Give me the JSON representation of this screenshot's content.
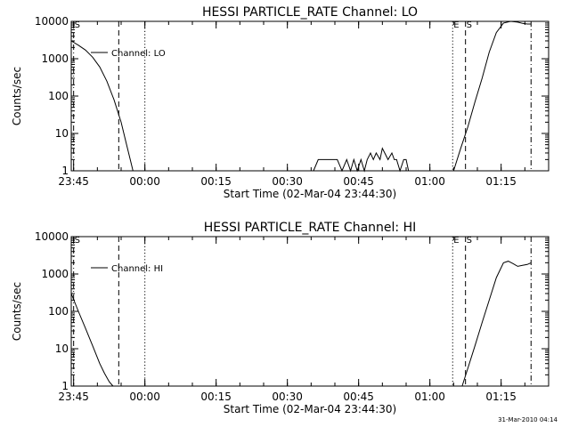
{
  "footer": {
    "timestamp": "31-Mar-2010 04:14"
  },
  "chart_data": [
    {
      "type": "line",
      "title": "HESSI PARTICLE_RATE Channel: LO",
      "xlabel": "Start Time (02-Mar-04 23:44:30)",
      "ylabel": "Counts/sec",
      "yscale": "log",
      "ylim": [
        1,
        10000
      ],
      "xlim_minutes": [
        0,
        100.5
      ],
      "xtick_values": [
        0.5,
        15.5,
        30.5,
        45.5,
        60.5,
        75.5,
        90.5
      ],
      "xtick_labels": [
        "23:45",
        "00:00",
        "00:15",
        "00:30",
        "00:45",
        "01:00",
        "01:15"
      ],
      "ytick_values": [
        1,
        10,
        100,
        1000,
        10000
      ],
      "ytick_labels": [
        "1",
        "10",
        "100",
        "1000",
        "10000"
      ],
      "grid": false,
      "legend": {
        "position": "top-left",
        "entries": [
          "Channel: LO"
        ]
      },
      "markers": [
        {
          "x": 0.5,
          "style": "dash-dot",
          "label": "S"
        },
        {
          "x": 10.0,
          "style": "dashed",
          "label": ""
        },
        {
          "x": 15.5,
          "style": "dotted",
          "label": ""
        },
        {
          "x": 80.3,
          "style": "dotted",
          "label": "E"
        },
        {
          "x": 83.0,
          "style": "dashed",
          "label": "S"
        },
        {
          "x": 96.8,
          "style": "dash-dot",
          "label": ""
        }
      ],
      "series": [
        {
          "name": "Channel: LO",
          "segments": [
            {
              "x": [
                0.0,
                1.5,
                3.0,
                4.5,
                6.0,
                7.5,
                9.0,
                10.5,
                11.5,
                12.5,
                13.0
              ],
              "y": [
                3000,
                2300,
                1700,
                1100,
                600,
                250,
                80,
                20,
                6,
                1.8,
                1
              ]
            },
            {
              "x": [
                51,
                52,
                53,
                54,
                55,
                56,
                57,
                58,
                58.8,
                59.5,
                60.2,
                61,
                61.7,
                62.3,
                63,
                63.6,
                64.2,
                65,
                65.5,
                66,
                66.7,
                67.5,
                68,
                68.5,
                69.2,
                70,
                70.5,
                71
              ],
              "y": [
                1,
                2,
                2,
                2,
                2,
                2,
                1,
                2,
                1,
                2,
                1,
                2,
                1,
                2,
                3,
                2,
                3,
                2,
                4,
                3,
                2,
                3,
                2,
                2,
                1,
                2,
                2,
                1
              ]
            },
            {
              "x": [
                80.5,
                82,
                83.5,
                85,
                86.5,
                88,
                89.5,
                91,
                92.5,
                94,
                95,
                96,
                96.8
              ],
              "y": [
                1,
                4,
                15,
                70,
                300,
                1500,
                5000,
                9000,
                10000,
                9500,
                8800,
                8500,
                8500
              ]
            }
          ]
        }
      ]
    },
    {
      "type": "line",
      "title": "HESSI PARTICLE_RATE Channel: HI",
      "xlabel": "Start Time (02-Mar-04 23:44:30)",
      "ylabel": "Counts/sec",
      "yscale": "log",
      "ylim": [
        1,
        10000
      ],
      "xlim_minutes": [
        0,
        100.5
      ],
      "xtick_values": [
        0.5,
        15.5,
        30.5,
        45.5,
        60.5,
        75.5,
        90.5
      ],
      "xtick_labels": [
        "23:45",
        "00:00",
        "00:15",
        "00:30",
        "00:45",
        "01:00",
        "01:15"
      ],
      "ytick_values": [
        1,
        10,
        100,
        1000,
        10000
      ],
      "ytick_labels": [
        "1",
        "10",
        "100",
        "1000",
        "10000"
      ],
      "grid": false,
      "legend": {
        "position": "top-left",
        "entries": [
          "Channel: HI"
        ]
      },
      "markers": [
        {
          "x": 0.5,
          "style": "dash-dot",
          "label": "S"
        },
        {
          "x": 10.0,
          "style": "dashed",
          "label": ""
        },
        {
          "x": 15.5,
          "style": "dotted",
          "label": ""
        },
        {
          "x": 80.3,
          "style": "dotted",
          "label": "E"
        },
        {
          "x": 83.0,
          "style": "dashed",
          "label": "S"
        },
        {
          "x": 96.8,
          "style": "dash-dot",
          "label": ""
        }
      ],
      "series": [
        {
          "name": "Channel: HI",
          "segments": [
            {
              "x": [
                0.0,
                1.5,
                3.0,
                4.5,
                6.0,
                7.0,
                8.0,
                8.8
              ],
              "y": [
                300,
                100,
                35,
                12,
                4,
                2.2,
                1.3,
                1
              ]
            },
            {
              "x": [
                82.3,
                83.5,
                85,
                86.5,
                88,
                89.5,
                91,
                92,
                93,
                94,
                95,
                96,
                96.8
              ],
              "y": [
                1,
                3,
                12,
                50,
                200,
                800,
                2000,
                2200,
                1900,
                1600,
                1700,
                1800,
                2000
              ]
            }
          ]
        }
      ]
    }
  ]
}
